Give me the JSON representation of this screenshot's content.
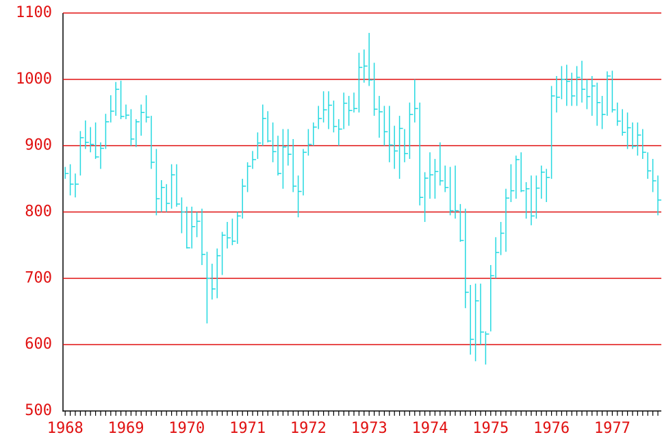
{
  "chart_data": {
    "type": "hlc",
    "categories": [
      "1968",
      null,
      null,
      null,
      null,
      null,
      null,
      null,
      null,
      null,
      null,
      null,
      "1969",
      null,
      null,
      null,
      null,
      null,
      null,
      null,
      null,
      null,
      null,
      null,
      "1970",
      null,
      null,
      null,
      null,
      null,
      null,
      null,
      null,
      null,
      null,
      null,
      "1971",
      null,
      null,
      null,
      null,
      null,
      null,
      null,
      null,
      null,
      null,
      null,
      "1972",
      null,
      null,
      null,
      null,
      null,
      null,
      null,
      null,
      null,
      null,
      null,
      "1973",
      null,
      null,
      null,
      null,
      null,
      null,
      null,
      null,
      null,
      null,
      null,
      "1974",
      null,
      null,
      null,
      null,
      null,
      null,
      null,
      null,
      null,
      null,
      null,
      "1975",
      null,
      null,
      null,
      null,
      null,
      null,
      null,
      null,
      null,
      null,
      null,
      "1976",
      null,
      null,
      null,
      null,
      null,
      null,
      null,
      null,
      null,
      null,
      null,
      "1977",
      null,
      null,
      null,
      null,
      null,
      null,
      null,
      null,
      null
    ],
    "high": [
      868,
      872,
      858,
      922,
      938,
      928,
      935,
      905,
      948,
      976,
      996,
      998,
      962,
      955,
      940,
      962,
      976,
      945,
      895,
      848,
      842,
      872,
      872,
      822,
      808,
      808,
      800,
      805,
      740,
      722,
      745,
      770,
      785,
      790,
      800,
      850,
      875,
      892,
      920,
      962,
      952,
      935,
      915,
      925,
      925,
      910,
      855,
      895,
      925,
      935,
      960,
      982,
      982,
      968,
      940,
      980,
      975,
      980,
      1040,
      1045,
      1070,
      1025,
      975,
      960,
      960,
      930,
      945,
      925,
      965,
      1000,
      965,
      860,
      890,
      880,
      905,
      870,
      868,
      870,
      812,
      805,
      690,
      692,
      692,
      620,
      720,
      762,
      785,
      835,
      872,
      885,
      890,
      845,
      855,
      855,
      870,
      865,
      990,
      1005,
      1020,
      1022,
      1010,
      1020,
      1028,
      1000,
      1005,
      995,
      975,
      1012,
      1013,
      965,
      955,
      950,
      935,
      935,
      925,
      890,
      880,
      855
    ],
    "low": [
      850,
      825,
      822,
      855,
      895,
      890,
      880,
      865,
      895,
      935,
      945,
      940,
      940,
      900,
      898,
      915,
      935,
      865,
      795,
      800,
      800,
      805,
      808,
      768,
      745,
      745,
      762,
      720,
      632,
      668,
      670,
      705,
      745,
      750,
      752,
      790,
      830,
      865,
      880,
      900,
      905,
      875,
      855,
      835,
      870,
      830,
      792,
      825,
      885,
      900,
      925,
      935,
      925,
      920,
      900,
      925,
      930,
      950,
      950,
      995,
      990,
      945,
      912,
      900,
      875,
      865,
      850,
      875,
      880,
      935,
      810,
      785,
      820,
      820,
      840,
      830,
      795,
      790,
      755,
      655,
      585,
      575,
      600,
      570,
      620,
      700,
      735,
      740,
      815,
      820,
      830,
      790,
      780,
      790,
      820,
      815,
      850,
      950,
      970,
      960,
      960,
      960,
      965,
      955,
      945,
      930,
      925,
      945,
      950,
      930,
      915,
      895,
      895,
      885,
      880,
      850,
      830,
      795
    ],
    "close": [
      858,
      842,
      842,
      912,
      905,
      902,
      883,
      896,
      936,
      952,
      985,
      944,
      946,
      910,
      936,
      950,
      943,
      875,
      820,
      837,
      813,
      856,
      812,
      800,
      746,
      778,
      786,
      736,
      700,
      684,
      734,
      765,
      761,
      756,
      794,
      839,
      869,
      879,
      904,
      941,
      907,
      891,
      858,
      898,
      887,
      839,
      831,
      890,
      902,
      928,
      941,
      954,
      961,
      929,
      925,
      964,
      953,
      956,
      1018,
      1020,
      999,
      955,
      951,
      921,
      901,
      892,
      926,
      888,
      947,
      956,
      822,
      851,
      856,
      861,
      847,
      837,
      802,
      802,
      757,
      679,
      608,
      666,
      619,
      616,
      704,
      739,
      768,
      821,
      832,
      879,
      832,
      835,
      794,
      836,
      860,
      852,
      975,
      973,
      1000,
      997,
      975,
      1003,
      985,
      974,
      990,
      965,
      947,
      1005,
      954,
      937,
      920,
      927,
      899,
      916,
      890,
      862,
      847,
      818
    ],
    "color": "#22d8e0",
    "grid_color": "#e01010",
    "ylim": [
      500,
      1100
    ],
    "yticks": [
      500,
      600,
      700,
      800,
      900,
      1000,
      1100
    ],
    "grid": true
  }
}
